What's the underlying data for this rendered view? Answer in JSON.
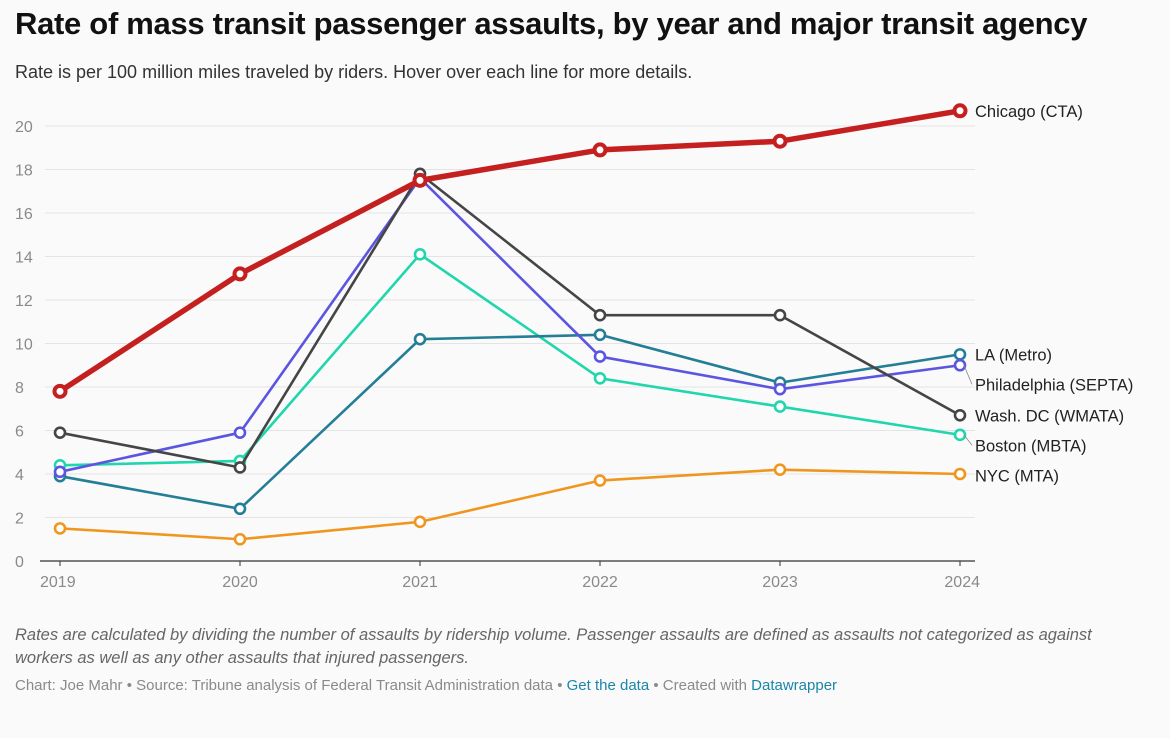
{
  "title": "Rate of mass transit passenger assaults, by year and major transit agency",
  "subtitle": "Rate is per 100 million miles traveled by riders. Hover over each line for more details.",
  "notes": "Rates are calculated by dividing the number of assaults by ridership volume. Passenger assaults are defined as assaults not categorized as against workers as well as any other assaults that injured passengers.",
  "footer": {
    "credit": "Chart: Joe Mahr",
    "separator": " • ",
    "source": "Source: Tribune analysis of Federal Transit Administration data",
    "data_link": "Get the data",
    "created_prefix": "Created with ",
    "created_link": "Datawrapper"
  },
  "chart_data": {
    "type": "line",
    "title": "Rate of mass transit passenger assaults, by year and major transit agency",
    "xlabel": "",
    "ylabel": "",
    "x": [
      "2019",
      "2020",
      "2021",
      "2022",
      "2023",
      "2024"
    ],
    "yticks": [
      0,
      2,
      4,
      6,
      8,
      10,
      12,
      14,
      16,
      18,
      20
    ],
    "ylim": [
      0,
      21
    ],
    "series": [
      {
        "name": "NYC (MTA)",
        "color": "#f0961e",
        "values": [
          1.5,
          1.0,
          1.8,
          3.7,
          4.2,
          4.0
        ],
        "emphasis": false
      },
      {
        "name": "Boston (MBTA)",
        "color": "#1fd6ad",
        "values": [
          4.4,
          4.6,
          14.1,
          8.4,
          7.1,
          5.8
        ],
        "emphasis": false
      },
      {
        "name": "LA (Metro)",
        "color": "#237e96",
        "values": [
          3.9,
          2.4,
          10.2,
          10.4,
          8.2,
          9.5
        ],
        "emphasis": false
      },
      {
        "name": "Philadelphia (SEPTA)",
        "color": "#5b55e0",
        "values": [
          4.1,
          5.9,
          17.6,
          9.4,
          7.9,
          9.0
        ],
        "emphasis": false
      },
      {
        "name": "Wash. DC (WMATA)",
        "color": "#454545",
        "values": [
          5.9,
          4.3,
          17.8,
          11.3,
          11.3,
          6.7
        ],
        "emphasis": false
      },
      {
        "name": "Chicago (CTA)",
        "color": "#c42020",
        "values": [
          7.8,
          13.2,
          17.5,
          18.9,
          19.3,
          20.7
        ],
        "emphasis": true
      }
    ]
  }
}
